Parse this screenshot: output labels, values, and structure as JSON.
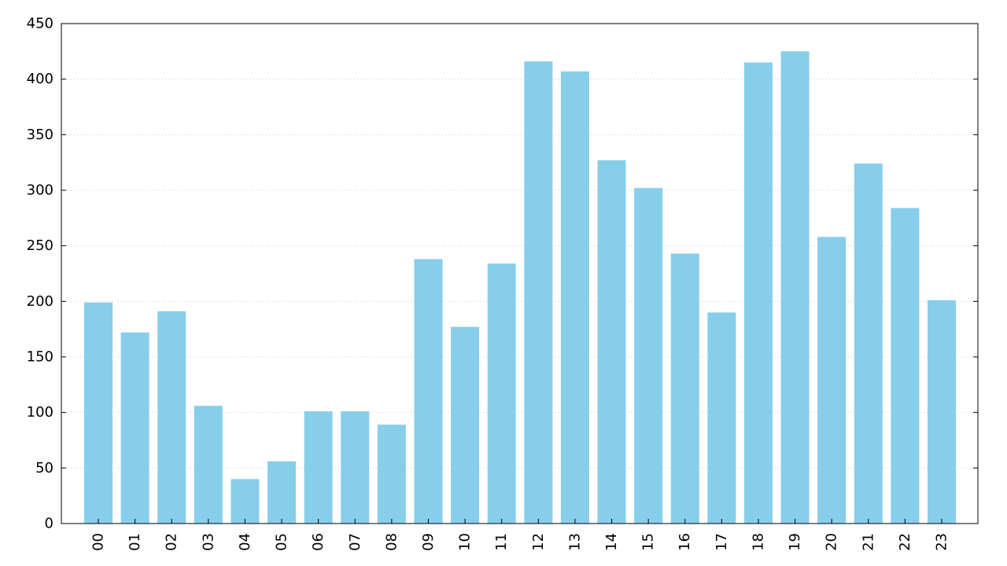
{
  "chart_data": {
    "type": "bar",
    "title": "",
    "xlabel": "",
    "ylabel": "",
    "categories": [
      "00",
      "01",
      "02",
      "03",
      "04",
      "05",
      "06",
      "07",
      "08",
      "09",
      "10",
      "11",
      "12",
      "13",
      "14",
      "15",
      "16",
      "17",
      "18",
      "19",
      "20",
      "21",
      "22",
      "23"
    ],
    "values": [
      199,
      172,
      191,
      106,
      40,
      56,
      101,
      101,
      89,
      238,
      177,
      234,
      416,
      407,
      327,
      302,
      243,
      190,
      415,
      425,
      258,
      324,
      284,
      201
    ],
    "ylim": [
      0,
      450
    ],
    "yticks": [
      0,
      50,
      100,
      150,
      200,
      250,
      300,
      350,
      400,
      450
    ],
    "grid": "horizontal dotted",
    "legend": "none",
    "bar_color": "#87ceeb"
  }
}
